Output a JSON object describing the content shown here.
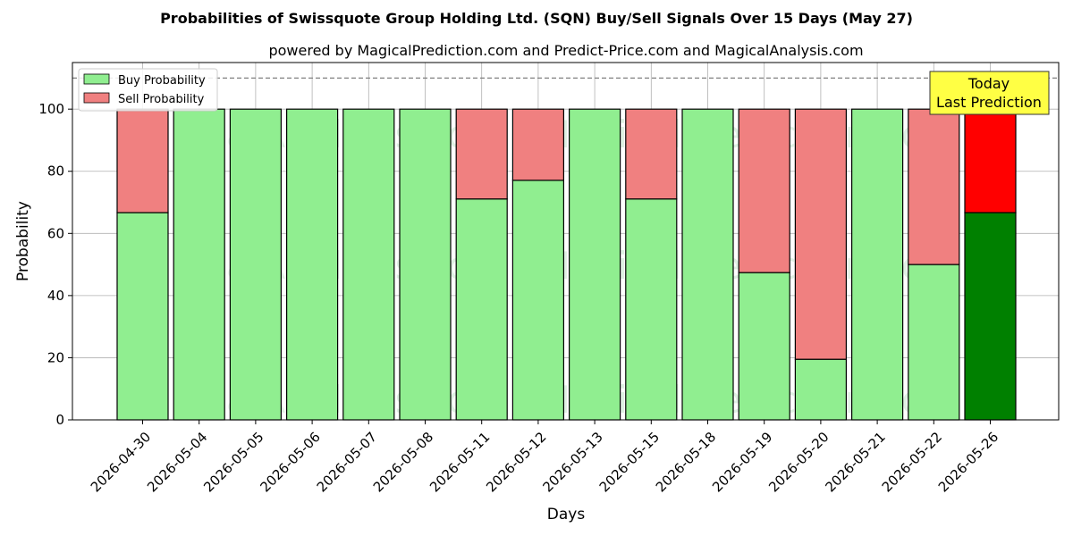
{
  "chart_data": {
    "type": "bar",
    "stacked": true,
    "title": "Probabilities of Swissquote Group Holding Ltd. (SQN) Buy/Sell Signals Over 15 Days (May 27)",
    "subtitle": "powered by MagicalPrediction.com and Predict-Price.com and MagicalAnalysis.com",
    "xlabel": "Days",
    "ylabel": "Probability",
    "ylim": [
      0,
      115
    ],
    "yticks": [
      0,
      20,
      40,
      60,
      80,
      100
    ],
    "grid": true,
    "reference_line": 110,
    "legend_position": "top-left",
    "categories": [
      "2026-04-30",
      "2026-05-04",
      "2026-05-05",
      "2026-05-06",
      "2026-05-07",
      "2026-05-08",
      "2026-05-11",
      "2026-05-12",
      "2026-05-13",
      "2026-05-15",
      "2026-05-18",
      "2026-05-19",
      "2026-05-20",
      "2026-05-21",
      "2026-05-22",
      "2026-05-26"
    ],
    "series": [
      {
        "name": "Buy Probability",
        "color": "#90ee90",
        "highlight_color": "#008000",
        "values": [
          66.7,
          100,
          100,
          100,
          100,
          100,
          71.1,
          77.1,
          100,
          71.1,
          100,
          47.4,
          19.5,
          100,
          50.0,
          66.7
        ]
      },
      {
        "name": "Sell Probability",
        "color": "#f08080",
        "highlight_color": "#ff0000",
        "values": [
          33.3,
          0,
          0,
          0,
          0,
          0,
          28.9,
          22.9,
          0,
          28.9,
          0,
          52.6,
          80.5,
          0,
          50.0,
          33.3
        ]
      }
    ],
    "highlight_index": 15,
    "annotation": {
      "lines": [
        "Today",
        "Last Prediction"
      ],
      "color": "#ffff44"
    },
    "watermarks": [
      "MagicalAnalysis.com",
      "MagicalPrediction.com"
    ]
  }
}
